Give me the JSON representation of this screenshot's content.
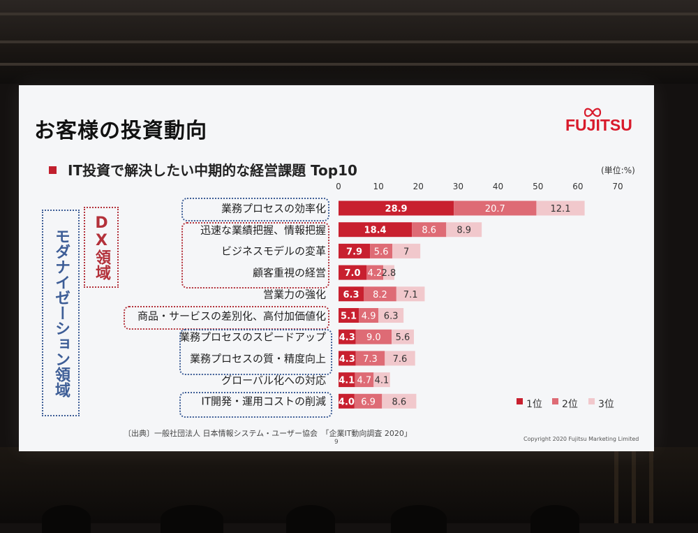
{
  "slide": {
    "title": "お客様の投資動向",
    "logo_text": "FUJITSU",
    "subtitle": "IT投資で解決したい中期的な経営課題 Top10",
    "unit": "(単位:%)",
    "source": "〔出典〕一般社団法人 日本情報システム・ユーザー協会　「企業IT動向調査 2020」",
    "page_number": "9",
    "copyright": "Copyright 2020 Fujitsu Marketing Limited",
    "group_labels": {
      "dx": "DX領域",
      "modernization": "モダナイゼーション領域"
    },
    "colors": {
      "accent": "#d81a2b",
      "rank1": "#c8202f",
      "rank2": "#de6b75",
      "rank3": "#f1c8cc"
    }
  },
  "chart_data": {
    "type": "bar",
    "orientation": "horizontal",
    "stacked": true,
    "xlim": [
      0,
      70
    ],
    "xticks": [
      "0",
      "10",
      "20",
      "30",
      "40",
      "50",
      "60",
      "70"
    ],
    "categories": [
      "業務プロセスの効率化",
      "迅速な業績把握、情報把握",
      "ビジネスモデルの変革",
      "顧客重視の経営",
      "営業力の強化",
      "商品・サービスの差別化、高付加価値化",
      "業務プロセスのスピードアップ",
      "業務プロセスの質・精度向上",
      "グローバル化への対応",
      "IT開発・運用コストの削減"
    ],
    "series": [
      {
        "name": "1位",
        "values": [
          28.9,
          18.4,
          7.9,
          7.0,
          6.3,
          5.1,
          4.3,
          4.3,
          4.1,
          4.0
        ],
        "labels": [
          "28.9",
          "18.4",
          "7.9",
          "7.0",
          "6.3",
          "5.1",
          "4.3",
          "4.3",
          "4.1",
          "4.0"
        ]
      },
      {
        "name": "2位",
        "values": [
          20.7,
          8.6,
          5.6,
          4.2,
          8.2,
          4.9,
          9.0,
          7.3,
          4.7,
          6.9
        ],
        "labels": [
          "20.7",
          "8.6",
          "5.6",
          "4.2",
          "8.2",
          "4.9",
          "9.0",
          "7.3",
          "4.7",
          "6.9"
        ]
      },
      {
        "name": "3位",
        "values": [
          12.1,
          8.9,
          7,
          2.8,
          7.1,
          6.3,
          5.6,
          7.6,
          4.1,
          8.6
        ],
        "labels": [
          "12.1",
          "8.9",
          "7",
          "2.8",
          "7.1",
          "6.3",
          "5.6",
          "7.6",
          "4.1",
          "8.6"
        ]
      }
    ],
    "legend": "bottom-right"
  }
}
